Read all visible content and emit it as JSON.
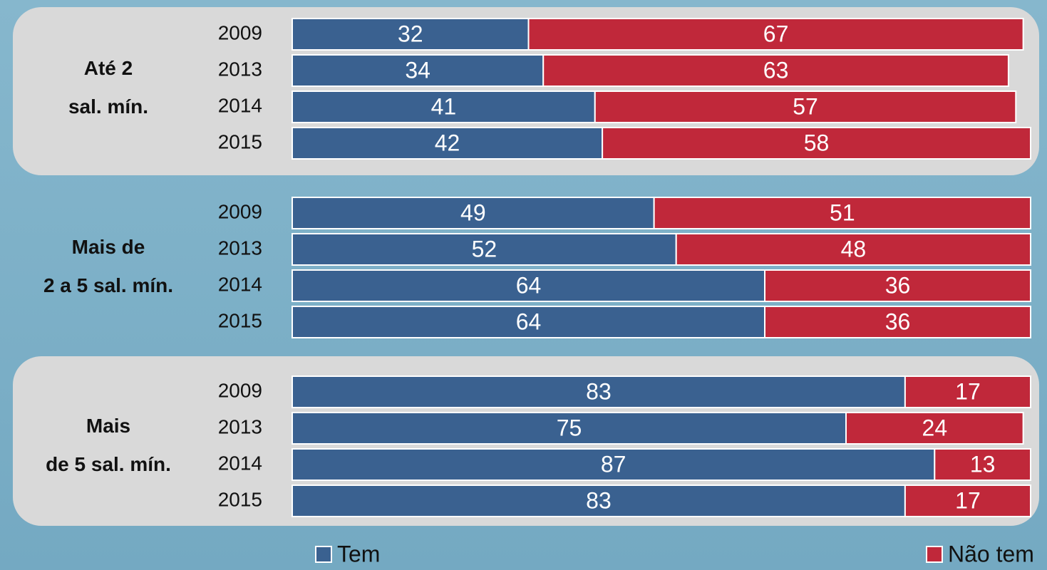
{
  "chart_data": {
    "type": "bar",
    "orientation": "horizontal",
    "stacked": true,
    "groups": [
      {
        "label": [
          "Até 2",
          "sal. mín."
        ],
        "categories": [
          "2009",
          "2013",
          "2014",
          "2015"
        ]
      },
      {
        "label": [
          "Mais de",
          "2 a 5 sal. mín."
        ],
        "categories": [
          "2009",
          "2013",
          "2014",
          "2015"
        ]
      },
      {
        "label": [
          "Mais",
          "de 5 sal. mín."
        ],
        "categories": [
          "2009",
          "2013",
          "2014",
          "2015"
        ]
      }
    ],
    "series": [
      {
        "name": "Tem",
        "color": "#3a6190",
        "values": [
          [
            32,
            34,
            41,
            42
          ],
          [
            49,
            52,
            64,
            64
          ],
          [
            83,
            75,
            87,
            83
          ]
        ]
      },
      {
        "name": "Não tem",
        "color": "#c0283a",
        "values": [
          [
            67,
            63,
            57,
            58
          ],
          [
            51,
            48,
            36,
            36
          ],
          [
            17,
            24,
            13,
            17
          ]
        ]
      }
    ],
    "xlim": [
      0,
      100
    ],
    "legend": "bottom"
  }
}
